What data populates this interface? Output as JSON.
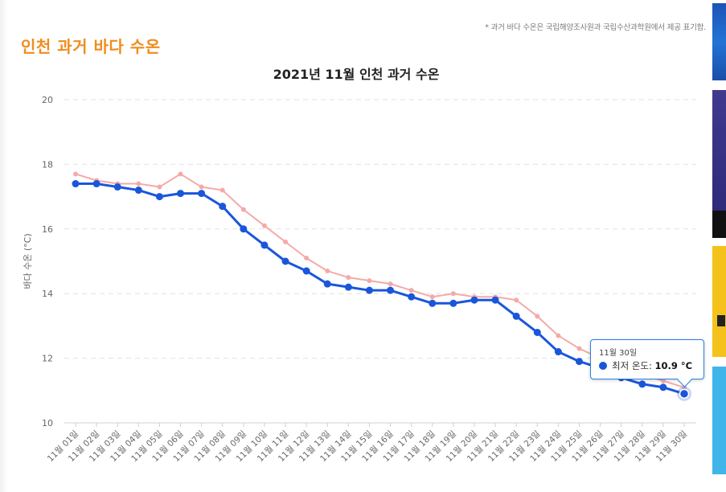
{
  "header": {
    "title": "인천 과거 바다 수온",
    "note": "* 과거 바다 수온은 국립해양조사원과 국립수산과학원에서 제공 표기함."
  },
  "chart_data": {
    "type": "line",
    "title": "2021년 11월 인천 과거 수온",
    "xlabel": "",
    "ylabel": "바다 수온 (°C)",
    "ylim": [
      10,
      20
    ],
    "yticks": [
      10,
      12,
      14,
      16,
      18,
      20
    ],
    "grid": true,
    "categories": [
      "11월 01일",
      "11월 02일",
      "11월 03일",
      "11월 04일",
      "11월 05일",
      "11월 06일",
      "11월 07일",
      "11월 08일",
      "11월 09일",
      "11월 10일",
      "11월 11일",
      "11월 12일",
      "11월 13일",
      "11월 14일",
      "11월 15일",
      "11월 16일",
      "11월 17일",
      "11월 18일",
      "11월 19일",
      "11월 20일",
      "11월 21일",
      "11월 22일",
      "11월 23일",
      "11월 24일",
      "11월 25일",
      "11월 26일",
      "11월 27일",
      "11월 28일",
      "11월 29일",
      "11월 30일"
    ],
    "series": [
      {
        "color": "#f4aaa8",
        "values": [
          17.7,
          17.5,
          17.4,
          17.4,
          17.3,
          17.7,
          17.3,
          17.2,
          16.6,
          16.1,
          15.6,
          15.1,
          14.7,
          14.5,
          14.4,
          14.3,
          14.1,
          13.9,
          14.0,
          13.9,
          13.9,
          13.8,
          13.3,
          12.7,
          12.3,
          12.0,
          11.7,
          11.5,
          11.3,
          11.1
        ]
      },
      {
        "name": "최저 온도",
        "color": "#1a56db",
        "values": [
          17.4,
          17.4,
          17.3,
          17.2,
          17.0,
          17.1,
          17.1,
          16.7,
          16.0,
          15.5,
          15.0,
          14.7,
          14.3,
          14.2,
          14.1,
          14.1,
          13.9,
          13.7,
          13.7,
          13.8,
          13.8,
          13.3,
          12.8,
          12.2,
          11.9,
          11.7,
          11.4,
          11.2,
          11.1,
          10.9
        ]
      }
    ],
    "tooltip": {
      "date": "11월 30일",
      "label": "최저 온도:",
      "value": "10.9 °C"
    }
  }
}
